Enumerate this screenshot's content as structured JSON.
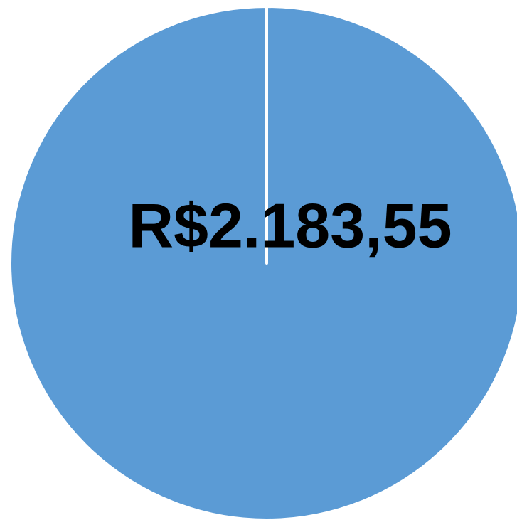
{
  "chart_data": {
    "type": "pie",
    "categories": [
      null
    ],
    "values": [
      2183.55
    ],
    "value_labels": [
      "R$2.183,55"
    ],
    "colors": [
      "#5b9bd5"
    ]
  }
}
